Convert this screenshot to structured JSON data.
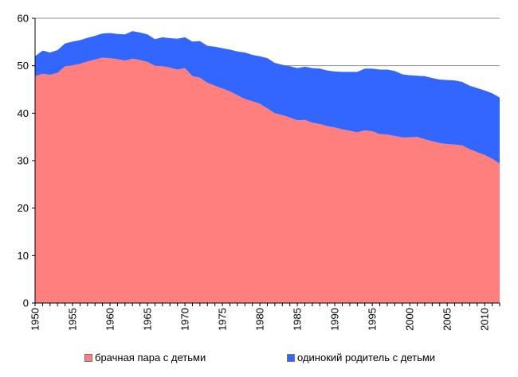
{
  "chart_data": {
    "type": "area",
    "stacked": true,
    "title": "",
    "xlabel": "",
    "ylabel": "",
    "ylim": [
      0,
      60
    ],
    "xlim": [
      1950,
      2012
    ],
    "yticks": [
      0,
      10,
      20,
      30,
      40,
      50,
      60
    ],
    "xticks": [
      1950,
      1955,
      1960,
      1965,
      1970,
      1975,
      1980,
      1985,
      1990,
      1995,
      2000,
      2005,
      2010
    ],
    "grid": "horizontal",
    "legend_position": "bottom",
    "x": [
      1950,
      1951,
      1952,
      1953,
      1954,
      1955,
      1956,
      1957,
      1958,
      1959,
      1960,
      1961,
      1962,
      1963,
      1964,
      1965,
      1966,
      1967,
      1968,
      1969,
      1970,
      1971,
      1972,
      1973,
      1974,
      1975,
      1976,
      1977,
      1978,
      1979,
      1980,
      1981,
      1982,
      1983,
      1984,
      1985,
      1986,
      1987,
      1988,
      1989,
      1990,
      1991,
      1992,
      1993,
      1994,
      1995,
      1996,
      1997,
      1998,
      1999,
      2000,
      2001,
      2002,
      2003,
      2004,
      2005,
      2006,
      2007,
      2008,
      2009,
      2010,
      2011,
      2012
    ],
    "series": [
      {
        "name": "брачная пара с детьми",
        "color": "#ff7f7f",
        "values": [
          47.8,
          48.3,
          48.1,
          48.5,
          49.9,
          50.1,
          50.4,
          50.9,
          51.3,
          51.7,
          51.6,
          51.4,
          51.1,
          51.5,
          51.2,
          50.8,
          50.0,
          49.9,
          49.6,
          49.2,
          49.5,
          47.8,
          47.5,
          46.4,
          45.8,
          45.2,
          44.6,
          43.8,
          43.0,
          42.5,
          42.0,
          41.0,
          40.0,
          39.6,
          39.1,
          38.5,
          38.6,
          38.0,
          37.7,
          37.3,
          37.0,
          36.6,
          36.3,
          36.0,
          36.4,
          36.2,
          35.6,
          35.5,
          35.2,
          34.9,
          34.9,
          35.0,
          34.5,
          34.1,
          33.7,
          33.5,
          33.4,
          33.2,
          32.4,
          31.8,
          31.2,
          30.4,
          29.4
        ]
      },
      {
        "name": "одинокий родитель с детьми",
        "color": "#3366ff",
        "values": [
          4.2,
          4.9,
          4.7,
          4.8,
          4.8,
          5.0,
          5.0,
          5.0,
          5.0,
          5.1,
          5.3,
          5.3,
          5.5,
          5.8,
          5.8,
          5.8,
          5.6,
          6.1,
          6.2,
          6.5,
          6.5,
          7.3,
          7.7,
          7.8,
          8.2,
          8.5,
          8.8,
          9.2,
          9.8,
          9.8,
          10.0,
          10.6,
          10.6,
          10.6,
          10.8,
          11.0,
          11.2,
          11.5,
          11.7,
          11.7,
          11.8,
          12.1,
          12.4,
          12.7,
          13.0,
          13.2,
          13.6,
          13.7,
          13.7,
          13.3,
          13.1,
          12.9,
          13.3,
          13.3,
          13.4,
          13.5,
          13.5,
          13.4,
          13.4,
          13.5,
          13.6,
          13.8,
          13.9
        ]
      }
    ]
  }
}
